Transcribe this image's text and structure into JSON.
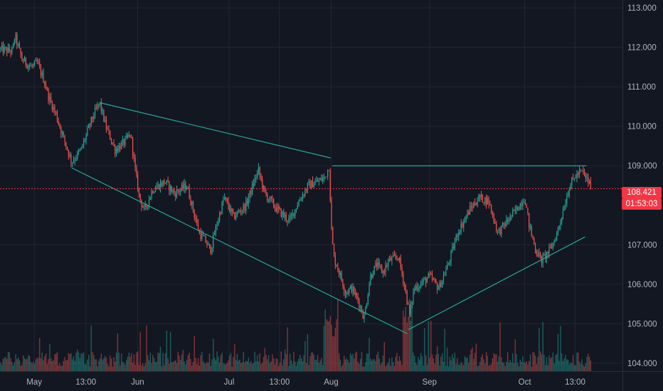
{
  "colors": {
    "background": "#131722",
    "grid": "#232632",
    "axis_text": "#b2b5be",
    "up": "#26a69a",
    "down": "#ef5350",
    "trendline": "#26a69a",
    "last_price": "#f23645"
  },
  "chart_data": {
    "type": "candlestick",
    "title": "",
    "xlabel": "",
    "ylabel": "",
    "ylim": [
      103.8,
      113.2
    ],
    "y_ticks": [
      "113.000",
      "112.000",
      "111.000",
      "110.000",
      "109.000",
      "107.000",
      "106.000",
      "105.000",
      "104.000"
    ],
    "x_ticks": [
      "May",
      "13:00",
      "Jun",
      "Jul",
      "13:00",
      "Aug",
      "Sep",
      "Oct",
      "13:00"
    ],
    "x_range": [
      0,
      100
    ],
    "x_tick_positions": [
      5.5,
      13.8,
      22.1,
      36.8,
      44.9,
      53.2,
      69.0,
      84.3,
      92.4
    ],
    "price_path": [
      [
        0,
        111.95
      ],
      [
        2.0,
        111.9
      ],
      [
        2.4,
        112.3
      ],
      [
        3.5,
        111.7
      ],
      [
        5.0,
        111.5
      ],
      [
        6.0,
        111.6
      ],
      [
        7.2,
        111.1
      ],
      [
        7.8,
        110.75
      ],
      [
        9.0,
        110.3
      ],
      [
        10.0,
        109.8
      ],
      [
        11.5,
        109.1
      ],
      [
        13.0,
        109.4
      ],
      [
        14.8,
        110.2
      ],
      [
        16.0,
        110.6
      ],
      [
        17.0,
        110.0
      ],
      [
        18.5,
        109.4
      ],
      [
        20.0,
        109.6
      ],
      [
        21.0,
        109.8
      ],
      [
        21.8,
        108.8
      ],
      [
        22.4,
        108.2
      ],
      [
        23.2,
        107.85
      ],
      [
        24.5,
        108.4
      ],
      [
        26.5,
        108.6
      ],
      [
        28.0,
        108.3
      ],
      [
        30.0,
        108.5
      ],
      [
        31.0,
        107.9
      ],
      [
        32.0,
        107.3
      ],
      [
        33.0,
        107.1
      ],
      [
        33.8,
        106.85
      ],
      [
        34.8,
        107.5
      ],
      [
        36.0,
        108.2
      ],
      [
        37.5,
        107.7
      ],
      [
        39.5,
        108.0
      ],
      [
        41.5,
        108.9
      ],
      [
        42.5,
        108.3
      ],
      [
        44.5,
        107.9
      ],
      [
        46.5,
        107.6
      ],
      [
        48.0,
        108.1
      ],
      [
        49.5,
        108.5
      ],
      [
        51.0,
        108.6
      ],
      [
        52.2,
        108.7
      ],
      [
        52.9,
        109.0
      ],
      [
        53.2,
        107.5
      ],
      [
        53.6,
        106.7
      ],
      [
        54.5,
        106.3
      ],
      [
        55.5,
        105.8
      ],
      [
        56.5,
        105.9
      ],
      [
        57.5,
        105.6
      ],
      [
        58.5,
        105.15
      ],
      [
        59.5,
        106.2
      ],
      [
        60.5,
        106.5
      ],
      [
        61.5,
        106.3
      ],
      [
        62.5,
        106.6
      ],
      [
        64.0,
        106.7
      ],
      [
        65.2,
        105.8
      ],
      [
        65.8,
        105.2
      ],
      [
        66.5,
        105.9
      ],
      [
        67.5,
        106.0
      ],
      [
        69.0,
        106.2
      ],
      [
        70.5,
        105.9
      ],
      [
        72.0,
        106.5
      ],
      [
        73.5,
        107.3
      ],
      [
        75.5,
        107.9
      ],
      [
        77.0,
        108.2
      ],
      [
        78.5,
        108.1
      ],
      [
        80.0,
        107.3
      ],
      [
        81.5,
        107.6
      ],
      [
        83.0,
        107.9
      ],
      [
        84.3,
        108.2
      ],
      [
        85.0,
        107.5
      ],
      [
        86.0,
        106.9
      ],
      [
        87.0,
        106.6
      ],
      [
        88.5,
        106.9
      ],
      [
        89.5,
        107.3
      ],
      [
        90.5,
        107.9
      ],
      [
        91.5,
        108.5
      ],
      [
        92.5,
        108.75
      ],
      [
        93.5,
        108.85
      ],
      [
        94.5,
        108.6
      ],
      [
        95.0,
        108.45
      ]
    ],
    "trendlines": [
      {
        "from": [
          16.0,
          110.6
        ],
        "to": [
          53.1,
          109.2
        ]
      },
      {
        "from": [
          53.4,
          109.0
        ],
        "to": [
          94.2,
          109.0
        ]
      },
      {
        "from": [
          11.5,
          108.95
        ],
        "to": [
          65.4,
          104.75
        ]
      },
      {
        "from": [
          65.6,
          104.85
        ],
        "to": [
          94.0,
          107.2
        ]
      }
    ],
    "last_price": 108.421,
    "last_price_label": "108.421",
    "countdown_label": "01:53:03",
    "candle_count": 470,
    "volume_bar_count": 470,
    "series": [
      {
        "name": "",
        "kind": "candles"
      },
      {
        "name": "",
        "kind": "volume"
      }
    ]
  }
}
